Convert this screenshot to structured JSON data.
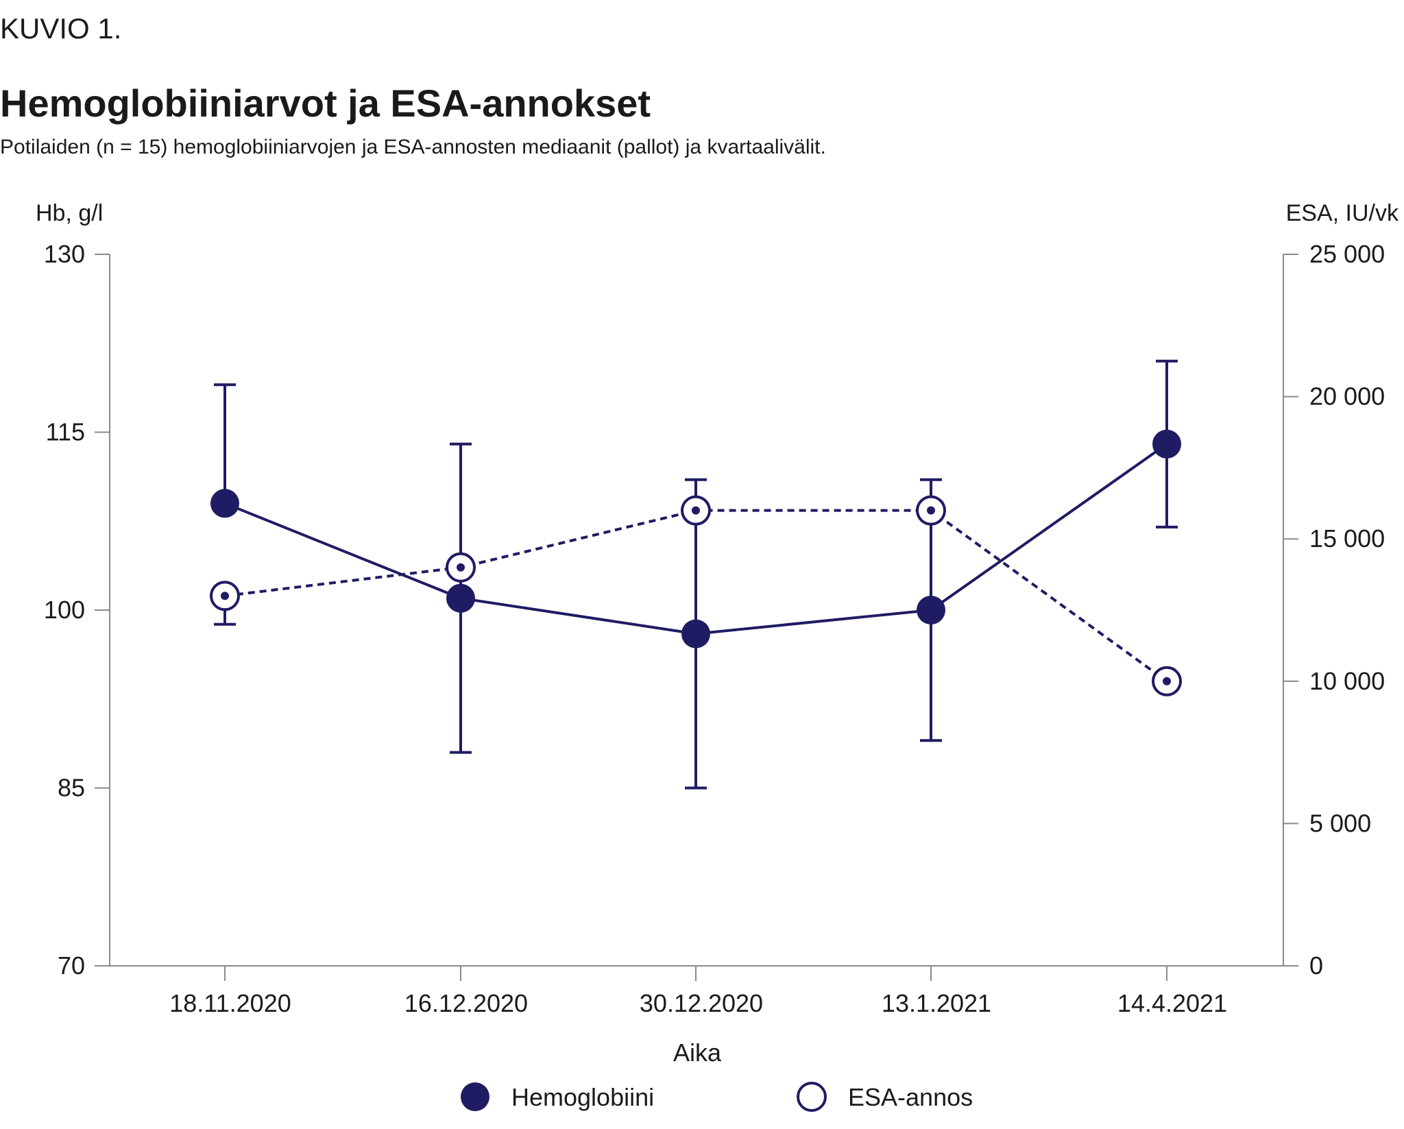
{
  "figure_label": "KUVIO 1.",
  "colors": {
    "series": "#1f1c63",
    "axis": "#8a8a8a",
    "text": "#1a1a1a"
  },
  "chart_data": {
    "type": "line",
    "title": "Hemoglobiiniarvot ja ESA-annokset",
    "subtitle": "Potilaiden (n = 15) hemoglobiiniarvojen ja ESA-annosten mediaanit (pallot) ja kvartaalivälit.",
    "xlabel": "Aika",
    "ylabel_left": "Hb, g/l",
    "ylabel_right": "ESA, IU/vk",
    "categories": [
      "18.11.2020",
      "16.12.2020",
      "30.12.2020",
      "13.1.2021",
      "14.4.2021"
    ],
    "y_left": {
      "min": 70,
      "max": 130,
      "ticks": [
        70,
        85,
        100,
        115,
        130
      ],
      "tick_labels": [
        "70",
        "85",
        "100",
        "115",
        "130"
      ]
    },
    "y_right": {
      "min": 0,
      "max": 25000,
      "ticks": [
        0,
        5000,
        10000,
        15000,
        20000,
        25000
      ],
      "tick_labels": [
        "0",
        "5 000",
        "10 000",
        "15 000",
        "20 000",
        "25 000"
      ]
    },
    "grid": false,
    "legend_position": "bottom",
    "series": [
      {
        "name": "Hemoglobiini",
        "axis": "left",
        "marker": "filled-circle",
        "line": "solid",
        "values": [
          109,
          101,
          98,
          100,
          114
        ],
        "q1": [
          null,
          88,
          85,
          89,
          107
        ],
        "q3": [
          119,
          114,
          111,
          111,
          121
        ]
      },
      {
        "name": "ESA-annos",
        "axis": "right",
        "marker": "open-circle",
        "line": "dashed",
        "values": [
          13000,
          14000,
          16000,
          16000,
          10000
        ],
        "q1": [
          12000,
          null,
          null,
          null,
          null
        ],
        "q3": [
          null,
          null,
          null,
          null,
          null
        ]
      }
    ]
  }
}
